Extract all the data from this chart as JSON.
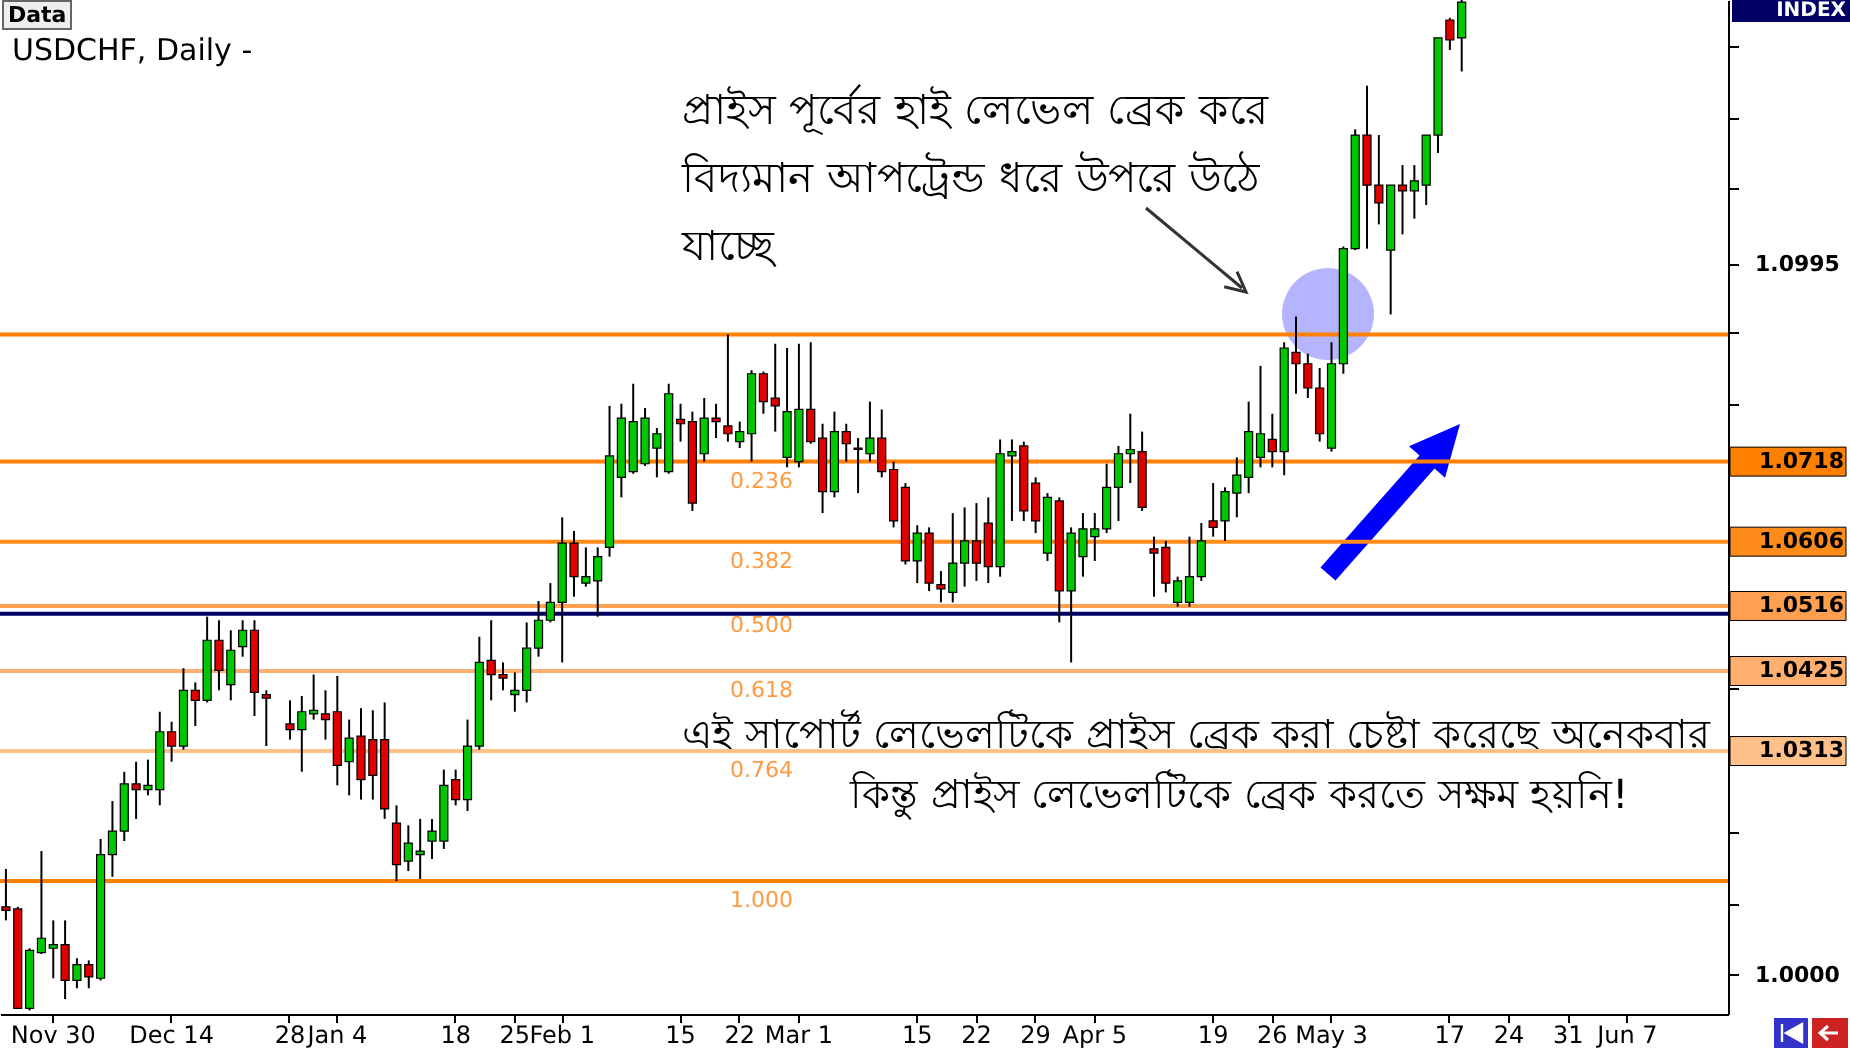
{
  "chart_data": {
    "type": "candlestick",
    "title": "USDCHF, Daily -",
    "categories": [
      null,
      null,
      null,
      null,
      "Nov 30",
      null,
      null,
      null,
      null,
      null,
      null,
      null,
      null,
      null,
      "Dec 14",
      null,
      null,
      null,
      null,
      null,
      null,
      null,
      null,
      null,
      "28",
      null,
      null,
      null,
      "Jan 4",
      null,
      null,
      null,
      null,
      null,
      null,
      null,
      null,
      null,
      "18",
      null,
      null,
      null,
      null,
      "25",
      null,
      null,
      null,
      "Feb 1",
      null,
      null,
      null,
      null,
      null,
      null,
      null,
      null,
      null,
      "15",
      null,
      null,
      null,
      null,
      "22",
      null,
      null,
      null,
      null,
      "Mar 1",
      null,
      null,
      null,
      null,
      null,
      null,
      null,
      null,
      null,
      "15",
      null,
      null,
      null,
      null,
      "22",
      null,
      null,
      null,
      null,
      "29",
      null,
      null,
      null,
      null,
      "Apr 5",
      null,
      null,
      null,
      null,
      null,
      null,
      null,
      null,
      null,
      "19",
      null,
      null,
      null,
      null,
      "26",
      null,
      null,
      null,
      null,
      "May 3",
      null,
      null,
      null,
      null,
      null,
      null,
      null,
      null,
      null,
      "17",
      null,
      null,
      null,
      null,
      "24",
      null,
      null,
      null,
      null,
      "31",
      null,
      null,
      null,
      null,
      "Jun 7",
      null,
      null,
      null,
      null,
      null,
      null,
      null,
      null
    ],
    "ohlc": [
      [
        1.0095,
        1.0148,
        1.0076,
        1.009
      ],
      [
        1.0092,
        1.0095,
        0.9953,
        0.9953
      ],
      [
        0.9953,
        1.0037,
        0.995,
        1.0034
      ],
      [
        1.0031,
        1.0173,
        1.0029,
        1.0051
      ],
      [
        1.0037,
        1.0076,
        0.9995,
        1.0042
      ],
      [
        1.0042,
        1.0076,
        0.9966,
        0.9992
      ],
      [
        0.9992,
        1.0023,
        0.9981,
        1.0014
      ],
      [
        1.0014,
        1.002,
        0.9981,
        0.9997
      ],
      [
        0.9995,
        1.019,
        0.9992,
        1.0168
      ],
      [
        1.0168,
        1.0243,
        1.0137,
        1.0201
      ],
      [
        1.0201,
        1.0284,
        1.0187,
        1.0267
      ],
      [
        1.0267,
        1.0298,
        1.0218,
        1.0259
      ],
      [
        1.0259,
        1.0301,
        1.0251,
        1.0265
      ],
      [
        1.0259,
        1.0368,
        1.0237,
        1.034
      ],
      [
        1.034,
        1.0354,
        1.0298,
        1.032
      ],
      [
        1.032,
        1.0429,
        1.0315,
        1.0398
      ],
      [
        1.0398,
        1.0409,
        1.0348,
        1.0384
      ],
      [
        1.0384,
        1.0501,
        1.0381,
        1.0468
      ],
      [
        1.0468,
        1.0496,
        1.0398,
        1.0426
      ],
      [
        1.0406,
        1.0482,
        1.0384,
        1.0454
      ],
      [
        1.0459,
        1.0496,
        1.0445,
        1.0482
      ],
      [
        1.0482,
        1.0496,
        1.0362,
        1.0395
      ],
      [
        1.0392,
        1.0398,
        1.032,
        1.0387
      ],
      null,
      [
        1.0351,
        1.0384,
        1.0329,
        1.0343
      ],
      [
        1.0343,
        1.039,
        1.0284,
        1.0368
      ],
      [
        1.0365,
        1.042,
        1.0357,
        1.037
      ],
      [
        1.0365,
        1.0398,
        1.0329,
        1.0357
      ],
      [
        1.0368,
        1.0418,
        1.0265,
        1.0293
      ],
      [
        1.0298,
        1.0357,
        1.0251,
        1.0331
      ],
      [
        1.0334,
        1.0373,
        1.0245,
        1.0273
      ],
      [
        1.0329,
        1.037,
        1.0245,
        1.0279
      ],
      [
        1.0329,
        1.0381,
        1.0218,
        1.0232
      ],
      [
        1.0212,
        1.0237,
        1.0131,
        1.0154
      ],
      [
        1.0159,
        1.0209,
        1.0145,
        1.0184
      ],
      [
        1.0168,
        1.0218,
        1.0134,
        1.0173
      ],
      [
        1.0187,
        1.0218,
        1.0162,
        1.0201
      ],
      [
        1.0187,
        1.0287,
        1.0176,
        1.0265
      ],
      [
        1.0273,
        1.0287,
        1.0237,
        1.0245
      ],
      [
        1.0245,
        1.0357,
        1.0229,
        1.032
      ],
      [
        1.032,
        1.0473,
        1.0315,
        1.0437
      ],
      [
        1.044,
        1.0496,
        1.0384,
        1.042
      ],
      [
        1.042,
        1.0437,
        1.0398,
        1.0415
      ],
      [
        1.0392,
        1.0423,
        1.0368,
        1.0398
      ],
      [
        1.0398,
        1.0493,
        1.0381,
        1.0457
      ],
      [
        1.0457,
        1.0523,
        1.0445,
        1.0496
      ],
      [
        1.0496,
        1.0548,
        1.0493,
        1.0521
      ],
      [
        1.0521,
        1.064,
        1.0437,
        1.0604
      ],
      [
        1.0604,
        1.0621,
        1.0529,
        1.0557
      ],
      [
        1.0548,
        1.0598,
        1.0543,
        1.0557
      ],
      [
        1.0551,
        1.0598,
        1.0501,
        1.0585
      ],
      [
        1.0598,
        1.0796,
        1.0585,
        1.0726
      ],
      [
        1.0696,
        1.0799,
        1.0668,
        1.0779
      ],
      [
        1.0704,
        1.0827,
        1.0701,
        1.0774
      ],
      [
        1.0715,
        1.0793,
        1.0712,
        1.0779
      ],
      [
        1.0737,
        1.0765,
        1.0696,
        1.0757
      ],
      [
        1.0704,
        1.0827,
        1.0701,
        1.0813
      ],
      [
        1.0777,
        1.0799,
        1.0746,
        1.0771
      ],
      [
        1.0774,
        1.0788,
        1.0649,
        1.066
      ],
      [
        1.0729,
        1.0807,
        1.0718,
        1.0779
      ],
      [
        1.0779,
        1.0799,
        1.0751,
        1.0774
      ],
      [
        1.0768,
        1.0896,
        1.0746,
        1.0757
      ],
      [
        1.0746,
        1.0774,
        1.0737,
        1.076
      ],
      [
        1.0757,
        1.0846,
        1.0718,
        1.0841
      ],
      [
        1.0841,
        1.0844,
        1.0785,
        1.0802
      ],
      [
        1.0807,
        1.0883,
        1.076,
        1.0796
      ],
      [
        1.0724,
        1.0877,
        1.071,
        1.0788
      ],
      [
        1.0718,
        1.0883,
        1.071,
        1.0791
      ],
      [
        1.0791,
        1.0885,
        1.0743,
        1.0746
      ],
      [
        1.0751,
        1.0771,
        1.0646,
        1.0676
      ],
      [
        1.0676,
        1.0788,
        1.0668,
        1.076
      ],
      [
        1.076,
        1.0771,
        1.0718,
        1.0743
      ],
      [
        1.0737,
        1.0751,
        1.0674,
        1.0735
      ],
      [
        1.0729,
        1.0802,
        1.0718,
        1.0751
      ],
      [
        1.0751,
        1.0791,
        1.0696,
        1.0704
      ],
      [
        1.0707,
        1.0718,
        1.0626,
        1.0635
      ],
      [
        1.0682,
        1.0688,
        1.0574,
        1.0579
      ],
      [
        1.0579,
        1.0629,
        1.0548,
        1.0618
      ],
      [
        1.0618,
        1.0626,
        1.0537,
        1.0548
      ],
      [
        1.0546,
        1.0565,
        1.0521,
        1.054
      ],
      [
        1.0535,
        1.0646,
        1.0521,
        1.0576
      ],
      [
        1.0576,
        1.0654,
        1.0543,
        1.0607
      ],
      [
        1.0607,
        1.066,
        1.0551,
        1.0576
      ],
      [
        1.0632,
        1.0668,
        1.0548,
        1.0571
      ],
      [
        1.0571,
        1.0749,
        1.0557,
        1.0729
      ],
      [
        1.0726,
        1.0749,
        1.0635,
        1.0732
      ],
      [
        1.074,
        1.0746,
        1.0635,
        1.0649
      ],
      [
        1.0688,
        1.0696,
        1.0618,
        1.0635
      ],
      [
        1.059,
        1.0674,
        1.0579,
        1.0668
      ],
      [
        1.0663,
        1.0668,
        1.0493,
        1.0537
      ],
      [
        1.0537,
        1.0626,
        1.0437,
        1.0618
      ],
      [
        1.0585,
        1.0646,
        1.0557,
        1.0624
      ],
      [
        1.0613,
        1.0646,
        1.0579,
        1.0624
      ],
      [
        1.0624,
        1.0715,
        1.0618,
        1.0682
      ],
      [
        1.0682,
        1.074,
        1.0635,
        1.0729
      ],
      [
        1.0729,
        1.0785,
        1.0688,
        1.0735
      ],
      [
        1.0732,
        1.076,
        1.0649,
        1.0654
      ],
      [
        1.0596,
        1.0613,
        1.0529,
        1.059
      ],
      [
        1.0598,
        1.0607,
        1.0535,
        1.0548
      ],
      [
        1.0521,
        1.0557,
        1.0515,
        1.0551
      ],
      [
        1.0521,
        1.0613,
        1.0515,
        1.0557
      ],
      [
        1.0557,
        1.0632,
        1.0551,
        1.0607
      ],
      [
        1.0635,
        1.0688,
        1.0613,
        1.0626
      ],
      [
        1.0635,
        1.0682,
        1.0607,
        1.0676
      ],
      [
        1.0674,
        1.0724,
        1.064,
        1.0699
      ],
      [
        1.0696,
        1.0802,
        1.0674,
        1.076
      ],
      [
        1.0724,
        1.0852,
        1.071,
        1.0757
      ],
      [
        1.0749,
        1.0785,
        1.071,
        1.0732
      ],
      [
        1.0732,
        1.0885,
        1.0699,
        1.0877
      ],
      [
        1.0871,
        1.0921,
        1.0813,
        1.0855
      ],
      [
        1.0855,
        1.0869,
        1.0807,
        1.0821
      ],
      [
        1.0821,
        1.0849,
        1.0746,
        1.0757
      ],
      [
        1.0737,
        1.0885,
        1.0732,
        1.0855
      ],
      [
        1.0855,
        1.1019,
        1.0841,
        1.1016
      ],
      [
        1.1016,
        1.1183,
        1.1014,
        1.1175
      ],
      [
        1.1175,
        1.1244,
        1.1016,
        1.1105
      ],
      [
        1.1105,
        1.1175,
        1.105,
        1.108
      ],
      [
        1.1014,
        1.1105,
        1.0924,
        1.1105
      ],
      [
        1.1105,
        1.1133,
        1.1036,
        1.1097
      ],
      [
        1.1097,
        1.1133,
        1.1058,
        1.1111
      ],
      [
        1.1105,
        1.1175,
        1.1077,
        1.1175
      ],
      [
        1.1175,
        1.1311,
        1.115,
        1.1311
      ],
      [
        1.1336,
        1.1339,
        1.1294,
        1.1308
      ],
      [
        1.1311,
        1.1364,
        1.1264,
        1.1361
      ],
      null,
      null,
      null,
      null,
      null,
      null,
      null,
      null,
      null,
      null,
      null,
      null,
      null,
      null,
      null,
      null,
      null,
      null,
      null,
      null,
      null,
      null
    ],
    "colors": [
      "#e00000",
      "#e00000",
      "#00c800",
      "#00c800",
      "#00c800",
      "#e00000",
      "#00c800",
      "#e00000",
      "#00c800",
      "#00c800",
      "#00c800",
      "#e00000",
      "#00c800",
      "#00c800",
      "#e00000",
      "#00c800",
      "#e00000",
      "#00c800",
      "#e00000",
      "#00c800",
      "#00c800",
      "#e00000",
      "#e00000",
      null,
      "#e00000",
      "#00c800",
      "#00c800",
      "#e00000",
      "#e00000",
      "#00c800",
      "#e00000",
      "#e00000",
      "#e00000",
      "#e00000",
      "#00c800",
      "#00c800",
      "#00c800",
      "#00c800",
      "#e00000",
      "#00c800",
      "#00c800",
      "#e00000",
      "#e00000",
      "#00c800",
      "#00c800",
      "#00c800",
      "#00c800",
      "#00c800",
      "#e00000",
      "#00c800",
      "#00c800",
      "#00c800",
      "#00c800",
      "#00c800",
      "#00c800",
      "#00c800",
      "#00c800",
      "#e00000",
      "#e00000",
      "#00c800",
      "#e00000",
      "#e00000",
      "#00c800",
      "#00c800",
      "#e00000",
      "#e00000",
      "#00c800",
      "#00c800",
      "#e00000",
      "#e00000",
      "#00c800",
      "#e00000",
      "#e00000",
      "#00c800",
      "#e00000",
      "#e00000",
      "#e00000",
      "#00c800",
      "#e00000",
      "#e00000",
      "#00c800",
      "#00c800",
      "#e00000",
      "#e00000",
      "#00c800",
      "#00c800",
      "#e00000",
      "#e00000",
      "#00c800",
      "#e00000",
      "#00c800",
      "#00c800",
      "#00c800",
      "#00c800",
      "#00c800",
      "#00c800",
      "#e00000",
      "#e00000",
      "#e00000",
      "#00c800",
      "#00c800",
      "#00c800",
      "#e00000",
      "#00c800",
      "#00c800",
      "#00c800",
      "#00c800",
      "#e00000",
      "#00c800",
      "#e00000",
      "#e00000",
      "#e00000",
      "#00c800",
      "#00c800",
      "#00c800",
      "#e00000",
      "#e00000",
      "#00c800",
      "#e00000",
      "#00c800",
      "#00c800",
      "#00c800",
      "#e00000",
      "#00c800",
      null,
      null,
      null,
      null,
      null,
      null,
      null,
      null,
      null,
      null,
      null,
      null,
      null,
      null,
      null,
      null,
      null,
      null,
      null,
      null,
      null,
      null
    ],
    "ylim": [
      0.9945,
      1.1364
    ],
    "yticks": [
      {
        "value": 1.0,
        "label": "1.0000"
      },
      {
        "value": 1.01,
        "label": null
      },
      {
        "value": 1.02,
        "label": null
      },
      {
        "value": 1.03,
        "label": null
      },
      {
        "value": 1.04,
        "label": null
      },
      {
        "value": 1.05,
        "label": null
      },
      {
        "value": 1.06,
        "label": null
      },
      {
        "value": 1.07,
        "label": null
      },
      {
        "value": 1.08,
        "label": null
      },
      {
        "value": 1.09,
        "label": null
      },
      {
        "value": 1.0995,
        "label": "1.0995"
      },
      {
        "value": 1.11,
        "label": null
      },
      {
        "value": 1.12,
        "label": null
      },
      {
        "value": 1.13,
        "label": null
      }
    ],
    "ref_lines": [
      {
        "axis": "y",
        "value": 1.0896,
        "label": null,
        "color": "#ff7f00"
      },
      {
        "axis": "y",
        "value": 1.0718,
        "label": "1.0718",
        "color": "#ff7f00"
      },
      {
        "axis": "y",
        "value": 1.0606,
        "label": "1.0606",
        "color": "#ff8c1a"
      },
      {
        "axis": "y",
        "value": 1.0516,
        "label": "1.0516",
        "color": "#ffa050"
      },
      {
        "axis": "y",
        "value": 1.0425,
        "label": "1.0425",
        "color": "#ffb070"
      },
      {
        "axis": "y",
        "value": 1.0313,
        "label": "1.0313",
        "color": "#ffc08a"
      },
      {
        "axis": "y",
        "value": 1.0131,
        "label": null,
        "color": "#ff7f00"
      },
      {
        "axis": "y",
        "value": 1.0505,
        "label": null,
        "color": "#000066"
      }
    ],
    "annotations": [
      "প্রাইস পূর্বের হাই লেভেল ব্রেক করে\nবিদ্যমান আপট্রেন্ড ধরে উপরে উঠে\nযাচ্ছে",
      "এই সাপোর্ট লেভেলটিকে প্রাইস ব্রেক করা চেষ্টা করেছে অনেকবার",
      "কিন্তু প্রাইস লেভেলটিকে ব্রেক করতে সক্ষম হয়নি!",
      "Data",
      "INDEX",
      {
        "text": "0.236",
        "y": 1.0718
      },
      {
        "text": "0.382",
        "y": 1.0606
      },
      {
        "text": "0.500",
        "y": 1.0516
      },
      {
        "text": "0.618",
        "y": 1.0425
      },
      {
        "text": "0.764",
        "y": 1.0313
      },
      {
        "text": "1.000",
        "y": 1.0131
      }
    ]
  }
}
